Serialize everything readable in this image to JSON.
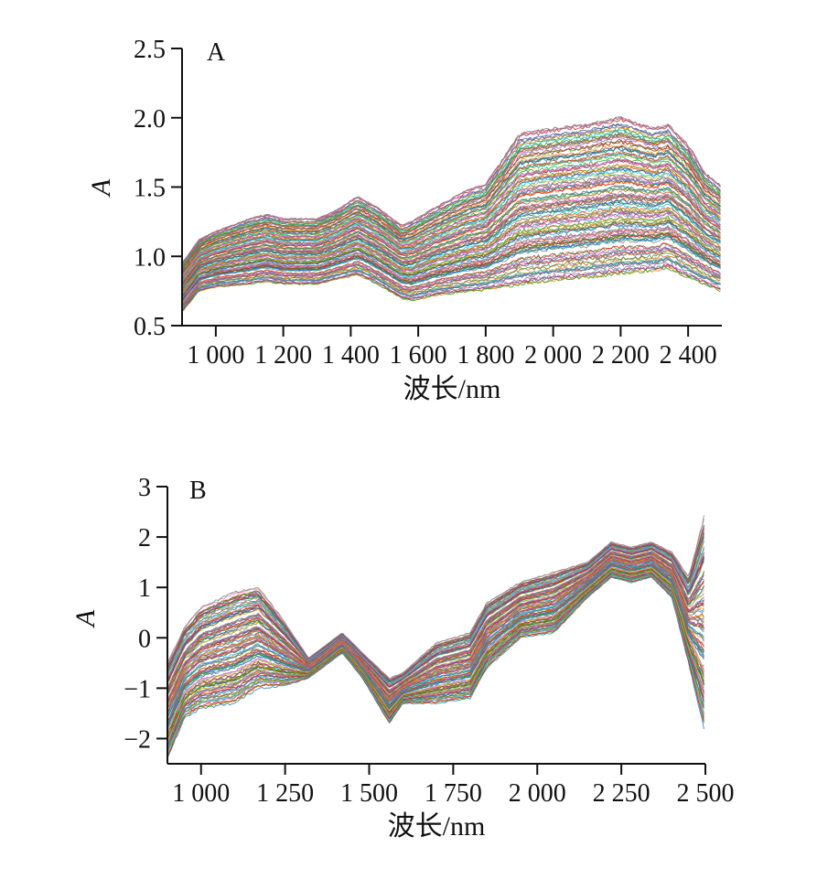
{
  "chart_data": [
    {
      "type": "line",
      "panel_label": "A",
      "xlabel": "波长/nm",
      "ylabel": "A",
      "xlim": [
        900,
        2500
      ],
      "ylim": [
        0.5,
        2.5
      ],
      "x_ticks": [
        1000,
        1200,
        1400,
        1600,
        1800,
        2000,
        2200,
        2400
      ],
      "x_tick_labels": [
        "1 000",
        "1 200",
        "1 400",
        "1 600",
        "1 800",
        "2 000",
        "2 200",
        "2 400"
      ],
      "y_ticks": [
        0.5,
        1.0,
        1.5,
        2.0,
        2.5
      ],
      "y_tick_labels": [
        "0.5",
        "1.0",
        "1.5",
        "2.0",
        "2.5"
      ],
      "grid": false,
      "legend": "none",
      "series_count": 120,
      "profile": {
        "x": [
          900,
          950,
          1000,
          1100,
          1150,
          1200,
          1300,
          1350,
          1420,
          1480,
          1550,
          1580,
          1650,
          1750,
          1800,
          1900,
          2000,
          2100,
          2200,
          2300,
          2340,
          2400,
          2450,
          2500
        ],
        "low": [
          0.6,
          0.75,
          0.78,
          0.8,
          0.82,
          0.8,
          0.8,
          0.83,
          0.87,
          0.8,
          0.7,
          0.68,
          0.72,
          0.75,
          0.76,
          0.8,
          0.83,
          0.85,
          0.88,
          0.9,
          0.92,
          0.85,
          0.8,
          0.75
        ],
        "high": [
          0.95,
          1.12,
          1.18,
          1.27,
          1.3,
          1.27,
          1.27,
          1.32,
          1.43,
          1.35,
          1.22,
          1.25,
          1.35,
          1.48,
          1.52,
          1.88,
          1.92,
          1.95,
          2.0,
          1.92,
          1.95,
          1.8,
          1.6,
          1.5
        ]
      }
    },
    {
      "type": "line",
      "panel_label": "B",
      "xlabel": "波长/nm",
      "ylabel": "A",
      "xlim": [
        900,
        2500
      ],
      "ylim": [
        -2.5,
        3
      ],
      "x_ticks": [
        1000,
        1250,
        1500,
        1750,
        2000,
        2250,
        2500
      ],
      "x_tick_labels": [
        "1 000",
        "1 250",
        "1 500",
        "1 750",
        "2 000",
        "2 250",
        "2 500"
      ],
      "y_ticks": [
        -2,
        -1,
        0,
        1,
        2,
        3
      ],
      "y_tick_labels": [
        "−2",
        "−1",
        "0",
        "1",
        "2",
        "3"
      ],
      "grid": false,
      "legend": "none",
      "series_count": 120,
      "profile": {
        "x": [
          900,
          950,
          1000,
          1100,
          1170,
          1250,
          1320,
          1420,
          1480,
          1560,
          1600,
          1700,
          1800,
          1850,
          1950,
          2050,
          2150,
          2220,
          2280,
          2340,
          2400,
          2450,
          2500
        ],
        "low": [
          -2.4,
          -1.6,
          -1.4,
          -1.3,
          -1.0,
          -0.95,
          -0.8,
          -0.3,
          -0.8,
          -1.7,
          -1.3,
          -1.3,
          -1.2,
          -0.6,
          0.0,
          0.1,
          0.8,
          1.2,
          1.1,
          1.2,
          0.8,
          -0.5,
          -1.9
        ],
        "high": [
          -0.5,
          0.2,
          0.6,
          0.9,
          1.0,
          0.3,
          -0.4,
          0.1,
          -0.3,
          -0.8,
          -0.7,
          -0.1,
          0.1,
          0.7,
          1.1,
          1.3,
          1.5,
          1.9,
          1.8,
          1.9,
          1.7,
          1.2,
          2.5
        ]
      }
    }
  ],
  "palette": [
    "#1f77b4",
    "#ff7f0e",
    "#2ca02c",
    "#d62728",
    "#9467bd",
    "#8c564b",
    "#e377c2",
    "#7f7f7f",
    "#bcbd22",
    "#17becf",
    "#3b6fb6",
    "#c65a1e",
    "#4a8f3a",
    "#555555"
  ]
}
